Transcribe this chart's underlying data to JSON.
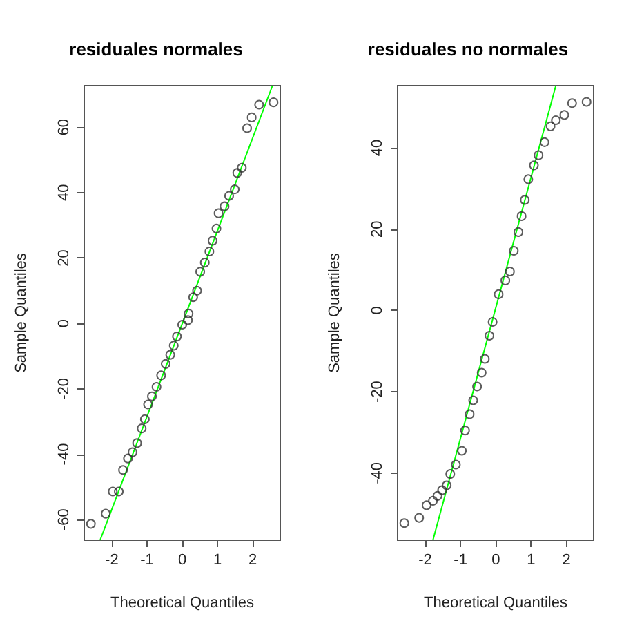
{
  "chart_data": [
    {
      "type": "scatter",
      "title": "residuales normales",
      "xlabel": "Theoretical Quantiles",
      "ylabel": "Sample Quantiles",
      "marker": "circle",
      "grid": false,
      "xlim": [
        -2.78,
        2.78
      ],
      "ylim": [
        -66.3,
        72.7
      ],
      "xticks": [
        -2,
        -1,
        0,
        1,
        2
      ],
      "yticks": [
        -60,
        -40,
        -20,
        0,
        20,
        40,
        60
      ],
      "series": [
        {
          "type": "scatter",
          "color": "#333333",
          "x": [
            -2.59,
            -2.17,
            -1.97,
            -1.8,
            -1.68,
            -1.54,
            -1.41,
            -1.28,
            -1.15,
            -1.06,
            -0.97,
            -0.86,
            -0.73,
            -0.6,
            -0.47,
            -0.34,
            -0.24,
            -0.15,
            0,
            0.16,
            0.18,
            0.31,
            0.42,
            0.51,
            0.64,
            0.77,
            0.86,
            0.97,
            1.03,
            1.2,
            1.33,
            1.49,
            1.56,
            1.69,
            1.84,
            1.97,
            2.18,
            2.59
          ],
          "values": [
            -61.3,
            -58.2,
            -51.4,
            -51.4,
            -44.8,
            -41.3,
            -39.4,
            -36.6,
            -32.1,
            -29.3,
            -24.8,
            -22.3,
            -19.4,
            -15.9,
            -12.4,
            -9.6,
            -6.8,
            -4,
            -0.4,
            1,
            3,
            8,
            10,
            15.8,
            18.6,
            22,
            25.3,
            29,
            33.7,
            35.8,
            39,
            41,
            46,
            47.6,
            59.7,
            63,
            66.9,
            67.6
          ]
        },
        {
          "type": "line",
          "marker": "none",
          "color": "#00ff00",
          "x": [
            -2.33,
            2.56
          ],
          "values": [
            -66.3,
            72.7
          ]
        }
      ]
    },
    {
      "type": "scatter",
      "title": "residuales no normales",
      "xlabel": "Theoretical Quantiles",
      "ylabel": "Sample Quantiles",
      "marker": "circle",
      "grid": false,
      "xlim": [
        -2.78,
        2.77
      ],
      "ylim": [
        -56.5,
        55.3
      ],
      "xticks": [
        -2,
        -1,
        0,
        1,
        2
      ],
      "yticks": [
        -40,
        -20,
        0,
        20,
        40
      ],
      "series": [
        {
          "type": "scatter",
          "color": "#333333",
          "x": [
            -2.59,
            -2.17,
            -1.96,
            -1.78,
            -1.65,
            -1.52,
            -1.39,
            -1.29,
            -1.13,
            -0.96,
            -0.87,
            -0.74,
            -0.64,
            -0.53,
            -0.4,
            -0.31,
            -0.18,
            -0.09,
            0.08,
            0.27,
            0.4,
            0.51,
            0.64,
            0.73,
            0.82,
            0.92,
            1.08,
            1.21,
            1.38,
            1.55,
            1.7,
            1.94,
            2.16,
            2.57
          ],
          "values": [
            -52.3,
            -51,
            -47.9,
            -46.8,
            -45.6,
            -44.2,
            -43,
            -40.2,
            -37.9,
            -34.5,
            -29.5,
            -25.5,
            -22.1,
            -18.7,
            -15.3,
            -11.9,
            -6.2,
            -2.8,
            4,
            7.4,
            9.6,
            14.7,
            19.3,
            23.2,
            27.2,
            32.3,
            35.7,
            38.2,
            41.4,
            45.3,
            46.8,
            48.1,
            51,
            51.3
          ]
        },
        {
          "type": "line",
          "marker": "none",
          "color": "#00ff00",
          "x": [
            -1.78,
            1.7
          ],
          "values": [
            -56.5,
            55.3
          ]
        }
      ]
    }
  ]
}
